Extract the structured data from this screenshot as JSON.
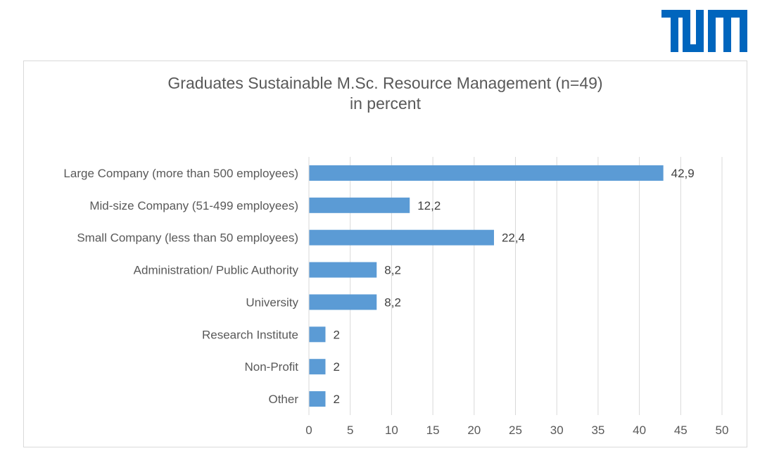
{
  "logo": {
    "text": "TUM",
    "color": "#0065bd"
  },
  "chart_data": {
    "type": "bar",
    "orientation": "horizontal",
    "title": "Graduates Sustainable M.Sc. Resource Management (n=49)",
    "subtitle": "in percent",
    "categories": [
      "Large Company (more than 500 employees)",
      "Mid-size Company (51-499 employees)",
      "Small Company (less than 50 employees)",
      "Administration/ Public Authority",
      "University",
      "Research Institute",
      "Non-Profit",
      "Other"
    ],
    "values": [
      42.9,
      12.2,
      22.4,
      8.2,
      8.2,
      2,
      2,
      2
    ],
    "value_labels": [
      "42,9",
      "12,2",
      "22,4",
      "8,2",
      "8,2",
      "2",
      "2",
      "2"
    ],
    "xlim": [
      0,
      50
    ],
    "xticks": [
      0,
      5,
      10,
      15,
      20,
      25,
      30,
      35,
      40,
      45,
      50
    ],
    "grid": "vertical",
    "legend": "none",
    "bar_color": "#5b9bd5",
    "grid_color": "#d9d9d9",
    "text_color": "#595959"
  }
}
